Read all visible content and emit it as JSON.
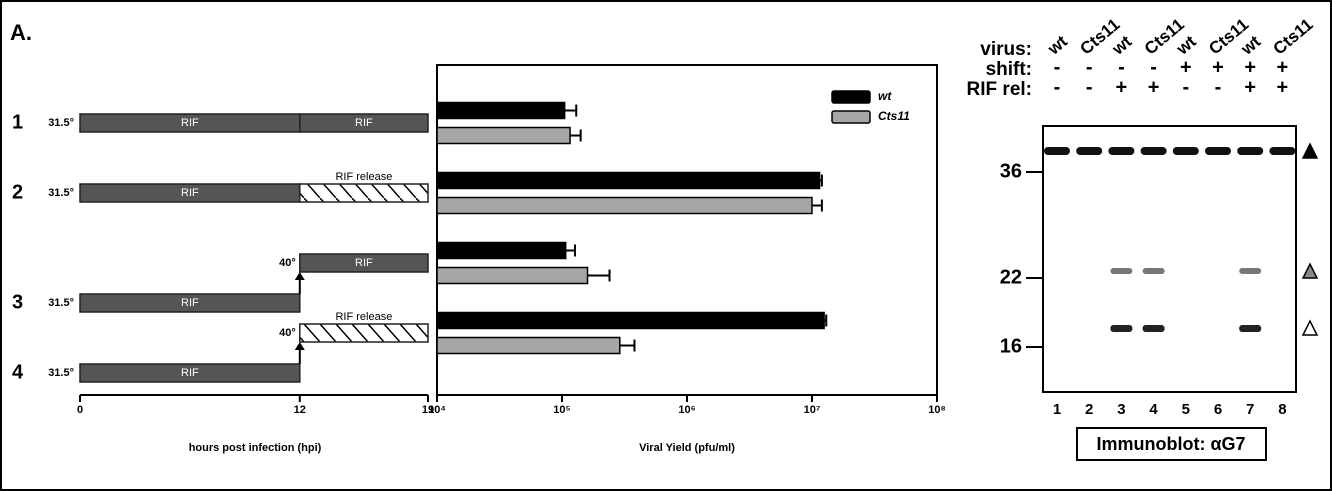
{
  "panel_label": "A.",
  "timeline": {
    "xlim": [
      0,
      19
    ],
    "ticks": [
      0,
      12,
      19
    ],
    "axis_label": "hours post infection (hpi)",
    "rows": [
      {
        "temp": "31.5°",
        "segments": [
          {
            "start": 0,
            "end": 12,
            "label": "RIF",
            "style": "solid"
          },
          {
            "start": 12,
            "end": 19,
            "label": "RIF",
            "style": "solid"
          }
        ]
      },
      {
        "temp": "31.5°",
        "segments": [
          {
            "start": 0,
            "end": 12,
            "label": "RIF",
            "style": "solid"
          },
          {
            "start": 12,
            "end": 19,
            "label": "RIF release",
            "style": "hatched"
          }
        ]
      },
      {
        "temp": "31.5°",
        "shift": "40°",
        "segments": [
          {
            "start": 0,
            "end": 12,
            "label": "RIF",
            "style": "solid"
          },
          {
            "start": 12,
            "end": 19,
            "label": "RIF",
            "style": "solid"
          }
        ]
      },
      {
        "temp": "31.5°",
        "shift": "40°",
        "segments": [
          {
            "start": 0,
            "end": 12,
            "label": "RIF",
            "style": "solid"
          },
          {
            "start": 12,
            "end": 19,
            "label": "RIF release",
            "style": "hatched"
          }
        ]
      }
    ]
  },
  "chart_data": {
    "type": "bar",
    "orientation": "horizontal",
    "xscale": "log",
    "categories": [
      "1",
      "2",
      "3",
      "4"
    ],
    "xlabel": "Viral Yield (pfu/ml)",
    "xlim": [
      10000,
      100000000
    ],
    "xticks": [
      {
        "value": 10000,
        "label": "10⁴"
      },
      {
        "value": 100000,
        "label": "10⁵"
      },
      {
        "value": 1000000,
        "label": "10⁶"
      },
      {
        "value": 10000000,
        "label": "10⁷"
      },
      {
        "value": 100000000,
        "label": "10⁸"
      }
    ],
    "legend": "top-right",
    "series": [
      {
        "name": "wt",
        "color": "#000000",
        "values": [
          105000,
          11500000,
          107000,
          12500000
        ],
        "errors": [
          25000,
          500000,
          20000,
          500000
        ]
      },
      {
        "name": "Cts11",
        "color": "#a6a6a6",
        "values": [
          116000,
          10000000,
          160000,
          290000
        ],
        "errors": [
          25000,
          2000000,
          80000,
          90000
        ]
      }
    ]
  },
  "blot": {
    "row_labels": [
      "virus:",
      "shift:",
      "RIF rel:"
    ],
    "lanes": [
      {
        "virus": "wt",
        "shift": "-",
        "rif": "-",
        "number": "1"
      },
      {
        "virus": "Cts11",
        "shift": "-",
        "rif": "-",
        "number": "2"
      },
      {
        "virus": "wt",
        "shift": "-",
        "rif": "+",
        "number": "3"
      },
      {
        "virus": "Cts11",
        "shift": "-",
        "rif": "+",
        "number": "4"
      },
      {
        "virus": "wt",
        "shift": "+",
        "rif": "-",
        "number": "5"
      },
      {
        "virus": "Cts11",
        "shift": "+",
        "rif": "-",
        "number": "6"
      },
      {
        "virus": "wt",
        "shift": "+",
        "rif": "+",
        "number": "7"
      },
      {
        "virus": "Cts11",
        "shift": "+",
        "rif": "+",
        "number": "8"
      }
    ],
    "markers": [
      36,
      22,
      16
    ],
    "caption": "Immunoblot: αG7"
  }
}
